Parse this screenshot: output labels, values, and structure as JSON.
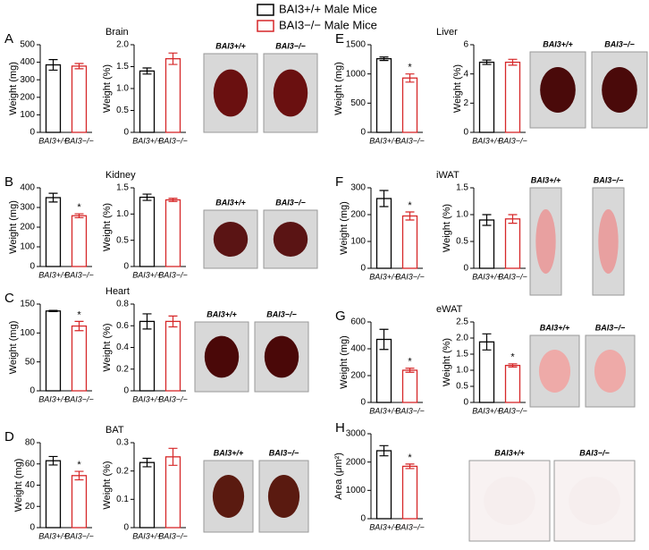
{
  "legend": [
    {
      "label": "BAI3+/+ Male Mice",
      "color": "#000000"
    },
    {
      "label": "BAI3−/− Male Mice",
      "color": "#d62728"
    }
  ],
  "chart_data": [
    {
      "type": "bar",
      "panel": "A",
      "title": "Brain",
      "y_label": "Weight (mg)",
      "ylim": [
        0,
        500
      ],
      "yticks": [
        0,
        100,
        200,
        300,
        400,
        500
      ],
      "categories": [
        "BAI3+/+",
        "BAI3−/−"
      ],
      "values": [
        385,
        378
      ],
      "errors": [
        30,
        15
      ],
      "colors": [
        "#000000",
        "#d62728"
      ],
      "significance": [
        null,
        null
      ]
    },
    {
      "type": "bar",
      "y_label": "Weight (%)",
      "ylim": [
        0,
        2
      ],
      "yticks": [
        0,
        0.5,
        {
          "value": 1,
          "label": "1.0"
        },
        1.5,
        {
          "value": 2,
          "label": "2.0"
        }
      ],
      "categories": [
        "BAI3+/+",
        "BAI3−/−"
      ],
      "values": [
        1.4,
        1.68
      ],
      "errors": [
        0.07,
        0.13
      ],
      "colors": [
        "#000000",
        "#d62728"
      ],
      "significance": [
        null,
        null
      ]
    },
    {
      "type": "bar",
      "panel": "B",
      "title": "Kidney",
      "y_label": "Weight (mg)",
      "ylim": [
        0,
        400
      ],
      "yticks": [
        0,
        100,
        200,
        300,
        400
      ],
      "categories": [
        "BAI3+/+",
        "BAI3−/−"
      ],
      "values": [
        350,
        258
      ],
      "errors": [
        22,
        10
      ],
      "colors": [
        "#000000",
        "#d62728"
      ],
      "significance": [
        null,
        "*"
      ]
    },
    {
      "type": "bar",
      "y_label": "Weight (%)",
      "ylim": [
        0,
        1.5
      ],
      "yticks": [
        0,
        0.5,
        {
          "value": 1,
          "label": "1.0"
        },
        1.5
      ],
      "categories": [
        "BAI3+/+",
        "BAI3−/−"
      ],
      "values": [
        1.32,
        1.27
      ],
      "errors": [
        0.06,
        0.03
      ],
      "colors": [
        "#000000",
        "#d62728"
      ],
      "significance": [
        null,
        null
      ]
    },
    {
      "type": "bar",
      "panel": "C",
      "title": "Heart",
      "y_label": "Weight (mg)",
      "ylim": [
        0,
        150
      ],
      "yticks": [
        0,
        50,
        100,
        150
      ],
      "categories": [
        "BAI3+/+",
        "BAI3−/−"
      ],
      "values": [
        138,
        112
      ],
      "errors": [
        1,
        8
      ],
      "colors": [
        "#000000",
        "#d62728"
      ],
      "significance": [
        null,
        "*"
      ]
    },
    {
      "type": "bar",
      "y_label": "Weight (%)",
      "ylim": [
        0,
        0.8
      ],
      "yticks": [
        0,
        0.2,
        0.4,
        0.6,
        0.8
      ],
      "categories": [
        "BAI3+/+",
        "BAI3−/−"
      ],
      "values": [
        0.64,
        0.64
      ],
      "errors": [
        0.07,
        0.05
      ],
      "colors": [
        "#000000",
        "#d62728"
      ],
      "significance": [
        null,
        null
      ]
    },
    {
      "type": "bar",
      "panel": "D",
      "title": "BAT",
      "y_label": "Weight (mg)",
      "ylim": [
        0,
        80
      ],
      "yticks": [
        0,
        20,
        40,
        60,
        80
      ],
      "categories": [
        "BAI3+/+",
        "BAI3−/−"
      ],
      "values": [
        63,
        49
      ],
      "errors": [
        4,
        4
      ],
      "colors": [
        "#000000",
        "#d62728"
      ],
      "significance": [
        null,
        "*"
      ]
    },
    {
      "type": "bar",
      "y_label": "Weight (%)",
      "ylim": [
        0,
        0.3
      ],
      "yticks": [
        0,
        0.1,
        0.2,
        0.3
      ],
      "categories": [
        "BAI3+/+",
        "BAI3−/−"
      ],
      "values": [
        0.23,
        0.25
      ],
      "errors": [
        0.015,
        0.03
      ],
      "colors": [
        "#000000",
        "#d62728"
      ],
      "significance": [
        null,
        null
      ]
    },
    {
      "type": "bar",
      "panel": "E",
      "title": "Liver",
      "y_label": "Weight (mg)",
      "ylim": [
        0,
        1500
      ],
      "yticks": [
        0,
        500,
        1000,
        1500
      ],
      "categories": [
        "BAI3+/+",
        "BAI3−/−"
      ],
      "values": [
        1260,
        930
      ],
      "errors": [
        30,
        70
      ],
      "colors": [
        "#000000",
        "#d62728"
      ],
      "significance": [
        null,
        "*"
      ]
    },
    {
      "type": "bar",
      "y_label": "Weight (%)",
      "ylim": [
        0,
        6
      ],
      "yticks": [
        0,
        2,
        4,
        6
      ],
      "categories": [
        "BAI3+/+",
        "BAI3−/−"
      ],
      "values": [
        4.8,
        4.8
      ],
      "errors": [
        0.15,
        0.2
      ],
      "colors": [
        "#000000",
        "#d62728"
      ],
      "significance": [
        null,
        null
      ]
    },
    {
      "type": "bar",
      "panel": "F",
      "title": "iWAT",
      "y_label": "Weight (mg)",
      "ylim": [
        0,
        300
      ],
      "yticks": [
        0,
        100,
        200,
        300
      ],
      "categories": [
        "BAI3+/+",
        "BAI3−/−"
      ],
      "values": [
        260,
        195
      ],
      "errors": [
        30,
        15
      ],
      "colors": [
        "#000000",
        "#d62728"
      ],
      "significance": [
        null,
        "*"
      ]
    },
    {
      "type": "bar",
      "y_label": "Weight (%)",
      "ylim": [
        0,
        1.5
      ],
      "yticks": [
        0,
        0.5,
        {
          "value": 1,
          "label": "1.0"
        },
        1.5
      ],
      "categories": [
        "BAI3+/+",
        "BAI3−/−"
      ],
      "values": [
        0.9,
        0.92
      ],
      "errors": [
        0.1,
        0.08
      ],
      "colors": [
        "#000000",
        "#d62728"
      ],
      "significance": [
        null,
        null
      ]
    },
    {
      "type": "bar",
      "panel": "G",
      "title": "eWAT",
      "y_label": "Weight (mg)",
      "ylim": [
        0,
        600
      ],
      "yticks": [
        0,
        200,
        400,
        600
      ],
      "categories": [
        "BAI3+/+",
        "BAI3−/−"
      ],
      "values": [
        470,
        240
      ],
      "errors": [
        75,
        15
      ],
      "colors": [
        "#000000",
        "#d62728"
      ],
      "significance": [
        null,
        "*"
      ]
    },
    {
      "type": "bar",
      "y_label": "Weight (%)",
      "ylim": [
        0,
        2.5
      ],
      "yticks": [
        0,
        0.5,
        {
          "value": 1,
          "label": "1.0"
        },
        1.5,
        {
          "value": 2,
          "label": "2.0"
        },
        2.5
      ],
      "categories": [
        "BAI3+/+",
        "BAI3−/−"
      ],
      "values": [
        1.88,
        1.15
      ],
      "errors": [
        0.25,
        0.05
      ],
      "colors": [
        "#000000",
        "#d62728"
      ],
      "significance": [
        null,
        "*"
      ]
    },
    {
      "type": "bar",
      "panel": "H",
      "y_label": "Area (μm²)",
      "ylim": [
        0,
        3000
      ],
      "yticks": [
        0,
        1000,
        2000,
        3000
      ],
      "categories": [
        "BAI3+/+",
        "BAI3−/−"
      ],
      "values": [
        2400,
        1850
      ],
      "errors": [
        180,
        80
      ],
      "colors": [
        "#000000",
        "#d62728"
      ],
      "significance": [
        null,
        "*"
      ]
    }
  ],
  "photos": [
    {
      "panel": "A",
      "labels": [
        "BAI3+/+",
        "BAI3−/−"
      ]
    },
    {
      "panel": "B",
      "labels": [
        "BAI3+/+",
        "BAI3−/−"
      ]
    },
    {
      "panel": "C",
      "labels": [
        "BAI3+/+",
        "BAI3−/−"
      ]
    },
    {
      "panel": "D",
      "labels": [
        "BAI3+/+",
        "BAI3−/−"
      ]
    },
    {
      "panel": "E",
      "labels": [
        "BAI3+/+",
        "BAI3−/−"
      ]
    },
    {
      "panel": "F",
      "labels": [
        "BAI3+/+",
        "BAI3−/−"
      ]
    },
    {
      "panel": "G",
      "labels": [
        "BAI3+/+",
        "BAI3−/−"
      ]
    },
    {
      "panel": "H",
      "labels": [
        "BAI3+/+",
        "BAI3−/−"
      ]
    }
  ]
}
